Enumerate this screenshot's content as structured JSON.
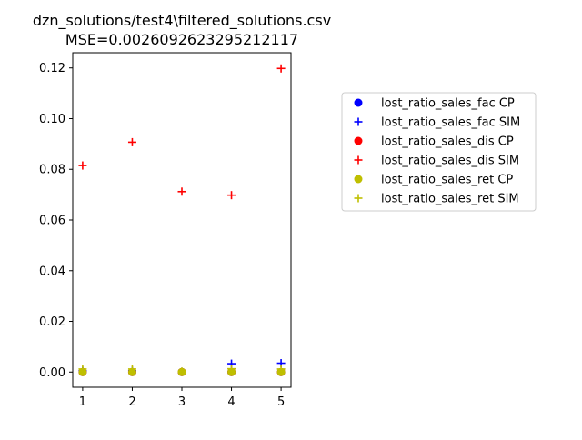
{
  "chart_data": {
    "type": "scatter",
    "title": "dzn_solutions/test4\\filtered_solutions.csv",
    "subtitle": "MSE=0.0026092623295212117",
    "xlabel": "",
    "ylabel": "",
    "xlim": [
      0.8,
      5.2
    ],
    "ylim": [
      -0.006,
      0.126
    ],
    "x_ticks": [
      1,
      2,
      3,
      4,
      5
    ],
    "x_tick_labels": [
      "1",
      "2",
      "3",
      "4",
      "5"
    ],
    "y_ticks": [
      0.0,
      0.02,
      0.04,
      0.06,
      0.08,
      0.1,
      0.12
    ],
    "y_tick_labels": [
      "0.00",
      "0.02",
      "0.04",
      "0.06",
      "0.08",
      "0.10",
      "0.12"
    ],
    "grid": false,
    "legend_position": "right, outside plot",
    "series": [
      {
        "name": "lost_ratio_sales_fac CP",
        "marker": "circle",
        "color": "#0000ff",
        "x": [
          1,
          2,
          3,
          4,
          5
        ],
        "y": [
          0,
          0,
          0,
          0,
          0
        ]
      },
      {
        "name": "lost_ratio_sales_fac SIM",
        "marker": "plus",
        "color": "#0000ff",
        "x": [
          1,
          2,
          3,
          4,
          5
        ],
        "y": [
          0.0005,
          0.0005,
          0.0001,
          0.0033,
          0.0035
        ]
      },
      {
        "name": "lost_ratio_sales_dis CP",
        "marker": "circle",
        "color": "#ff0000",
        "x": [
          1,
          2,
          3,
          4,
          5
        ],
        "y": [
          0,
          0,
          0,
          0,
          0
        ]
      },
      {
        "name": "lost_ratio_sales_dis SIM",
        "marker": "plus",
        "color": "#ff0000",
        "x": [
          1,
          2,
          3,
          4,
          5
        ],
        "y": [
          0.0815,
          0.0907,
          0.0712,
          0.0698,
          0.1198
        ]
      },
      {
        "name": "lost_ratio_sales_ret CP",
        "marker": "circle",
        "color": "#bfbf00",
        "x": [
          1,
          2,
          3,
          4,
          5
        ],
        "y": [
          0,
          0,
          0,
          0,
          0
        ]
      },
      {
        "name": "lost_ratio_sales_ret SIM",
        "marker": "plus",
        "color": "#bfbf00",
        "x": [
          1,
          2,
          3,
          4,
          5
        ],
        "y": [
          0.0012,
          0.0012,
          0.0002,
          0.0013,
          0.0012
        ]
      }
    ]
  }
}
